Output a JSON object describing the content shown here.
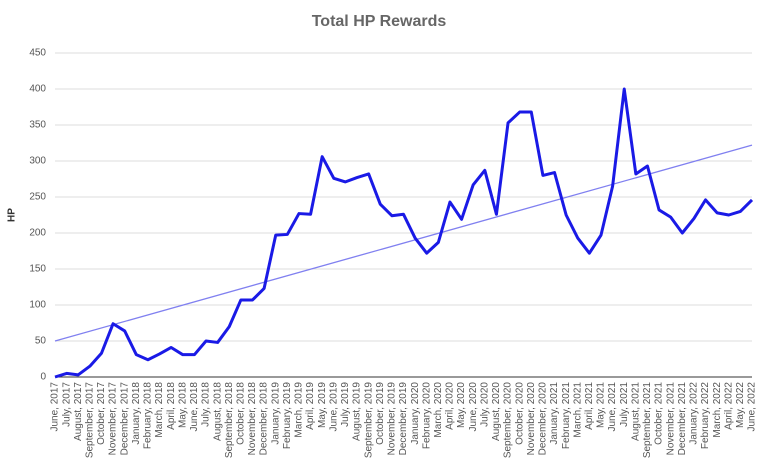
{
  "chart_data": {
    "type": "line",
    "title": "Total HP Rewards",
    "y_label": "HP",
    "categories": [
      "June, 2017",
      "July, 2017",
      "August, 2017",
      "September, 2017",
      "October, 2017",
      "November, 2017",
      "December, 2017",
      "January, 2018",
      "February, 2018",
      "March, 2018",
      "April, 2018",
      "May, 2018",
      "June, 2018",
      "July, 2018",
      "August, 2018",
      "September, 2018",
      "October, 2018",
      "November, 2018",
      "December, 2018",
      "January, 2019",
      "February, 2019",
      "March, 2019",
      "April, 2019",
      "May, 2019",
      "June, 2019",
      "July, 2019",
      "August, 2019",
      "September, 2019",
      "October, 2019",
      "November, 2019",
      "December, 2019",
      "January, 2020",
      "February, 2020",
      "March, 2020",
      "April, 2020",
      "May, 2020",
      "June, 2020",
      "July, 2020",
      "August, 2020",
      "September, 2020",
      "October, 2020",
      "November, 2020",
      "December, 2020",
      "January, 2021",
      "February, 2021",
      "March, 2021",
      "April, 2021",
      "May, 2021",
      "June, 2021",
      "July, 2021",
      "August, 2021",
      "September, 2021",
      "October, 2021",
      "November, 2021",
      "December, 2021",
      "January, 2022",
      "February, 2022",
      "March, 2022",
      "April, 2022",
      "May, 2022",
      "June, 2022"
    ],
    "series": [
      {
        "color": "#1a1ae6",
        "values": [
          0,
          5,
          3,
          15,
          33,
          74,
          64,
          31,
          24,
          32,
          41,
          31,
          31,
          50,
          48,
          70,
          107,
          107,
          123,
          197,
          198,
          227,
          226,
          306,
          276,
          271,
          277,
          282,
          240,
          224,
          226,
          193,
          172,
          187,
          243,
          219,
          267,
          287,
          226,
          353,
          368,
          368,
          280,
          284,
          225,
          193,
          172,
          197,
          265,
          400,
          282,
          293,
          232,
          222,
          200,
          220,
          246,
          228,
          225,
          230,
          246
        ]
      }
    ],
    "trendline": {
      "color": "#8080f0",
      "values": [
        50,
        322
      ]
    },
    "ylim": [
      0,
      450
    ],
    "yticks": [
      0,
      50,
      100,
      150,
      200,
      250,
      300,
      350,
      400,
      450
    ],
    "grid": true
  }
}
